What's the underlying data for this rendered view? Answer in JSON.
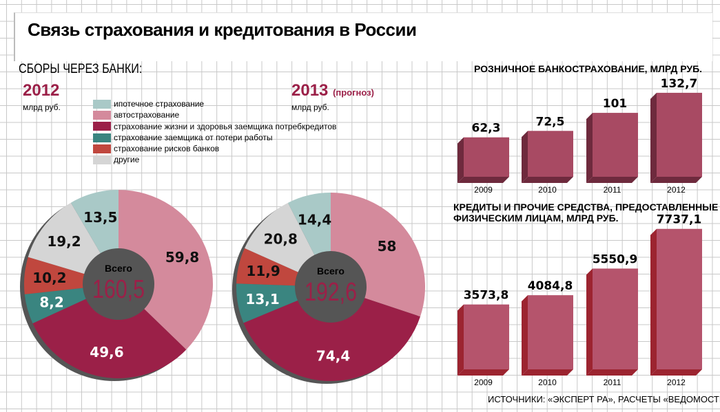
{
  "title": "Связь страхования и кредитования в России",
  "section": "СБОРЫ ЧЕРЕЗ БАНКИ:",
  "left": {
    "year": "2012",
    "unit": "млрд руб."
  },
  "right": {
    "year": "2013",
    "note": "(прогноз)",
    "unit": "млрд руб."
  },
  "legend": [
    {
      "label": "ипотечное страхование",
      "color": "#a9c9c7"
    },
    {
      "label": "автострахование",
      "color": "#d48a9c"
    },
    {
      "label": "страхование жизни и здоровья заемщика потребкредитов",
      "color": "#9b2048"
    },
    {
      "label": "страхование заемщика от потери работы",
      "color": "#3a8580"
    },
    {
      "label": "страхование рисков банков",
      "color": "#c0473e"
    },
    {
      "label": "другие",
      "color": "#d5d5d5"
    }
  ],
  "chart_data": [
    {
      "type": "pie",
      "title": "2012",
      "total_label": "Всего",
      "total": "160,5",
      "categories": [
        "автострахование",
        "страхование жизни и здоровья заемщика потребкредитов",
        "страхование заемщика от потери работы",
        "страхование рисков банков",
        "другие",
        "ипотечное страхование"
      ],
      "values": [
        59.8,
        49.6,
        8.2,
        10.2,
        19.2,
        13.5
      ],
      "labels": [
        "59,8",
        "49,6",
        "8,2",
        "10,2",
        "19,2",
        "13,5"
      ]
    },
    {
      "type": "pie",
      "title": "2013 (прогноз)",
      "total_label": "Всего",
      "total": "192,6",
      "categories": [
        "автострахование",
        "страхование жизни и здоровья заемщика потребкредитов",
        "страхование заемщика от потери работы",
        "страхование рисков банков",
        "другие",
        "ипотечное страхование"
      ],
      "values": [
        58,
        74.4,
        13.1,
        11.9,
        20.8,
        14.4
      ],
      "labels": [
        "58",
        "74,4",
        "13,1",
        "11,9",
        "20,8",
        "14,4"
      ]
    },
    {
      "type": "bar",
      "title": "РОЗНИЧНОЕ БАНКОСТРАХОВАНИЕ, МЛРД РУБ.",
      "categories": [
        "2009",
        "2010",
        "2011",
        "2012"
      ],
      "values": [
        62.3,
        72.5,
        101,
        132.7
      ],
      "labels": [
        "62,3",
        "72,5",
        "101",
        "132,7"
      ],
      "color": "#a84a63",
      "side": "#6e2a3d"
    },
    {
      "type": "bar",
      "title": "КРЕДИТЫ И ПРОЧИЕ СРЕДСТВА, ПРЕДОСТАВЛЕННЫЕ ФИЗИЧЕСКИМ ЛИЦАМ, МЛРД РУБ.",
      "title_lines": [
        "КРЕДИТЫ И ПРОЧИЕ СРЕДСТВА, ПРЕДОСТАВЛЕННЫЕ",
        "ФИЗИЧЕСКИМ ЛИЦАМ, МЛРД РУБ."
      ],
      "categories": [
        "2009",
        "2010",
        "2011",
        "2012"
      ],
      "values": [
        3573.8,
        4084.8,
        5550.9,
        7737.1
      ],
      "labels": [
        "3573,8",
        "4084,8",
        "5550,9",
        "7737,1"
      ],
      "color": "#b5546c",
      "side": "#9c2430"
    }
  ],
  "source": "ИСТОЧНИКИ: «ЭКСПЕРТ РА», РАСЧЕТЫ «ВЕДОМОСТЕЙ»"
}
